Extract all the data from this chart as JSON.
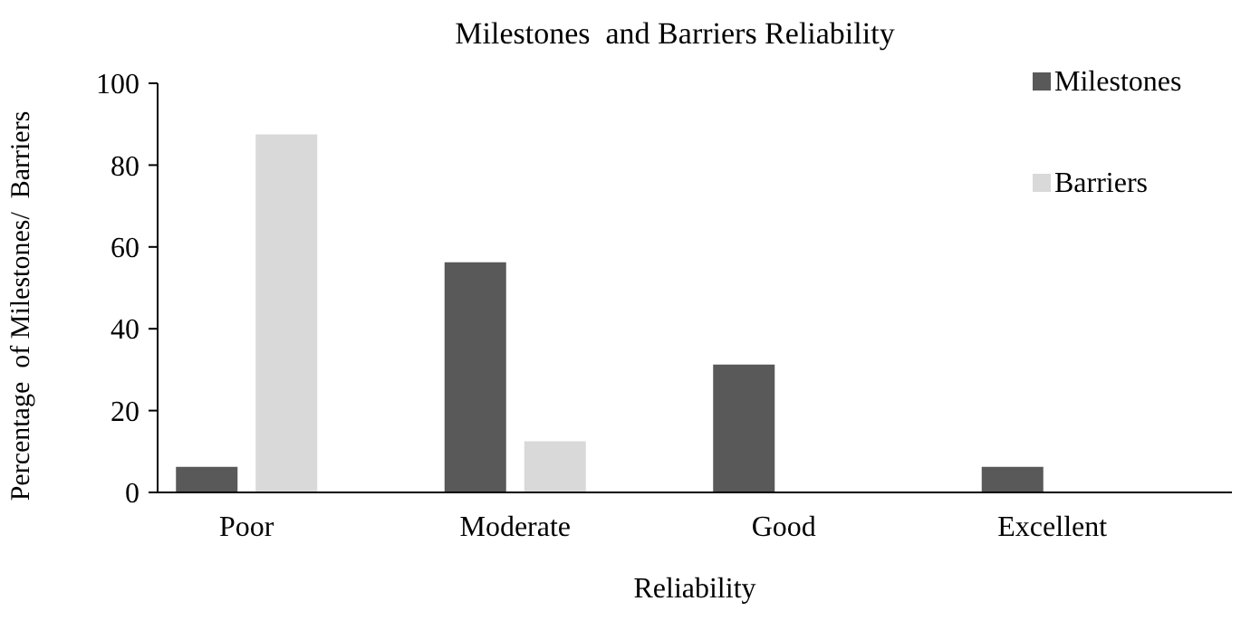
{
  "chart_data": {
    "type": "bar",
    "title": "Milestones  and Barriers Reliability",
    "xlabel": "Reliability",
    "ylabel": "Percentage  of Milestones/  Barriers",
    "categories": [
      "Poor",
      "Moderate",
      "Good",
      "Excellent"
    ],
    "series": [
      {
        "name": "Milestones",
        "color": "#595959",
        "values": [
          6.25,
          56.25,
          31.25,
          6.25
        ]
      },
      {
        "name": "Barriers",
        "color": "#d9d9d9",
        "values": [
          87.5,
          12.5,
          0,
          0
        ]
      }
    ],
    "ylim": [
      0,
      100
    ],
    "yticks": [
      0,
      20,
      40,
      60,
      80,
      100
    ],
    "grid": false,
    "legend": "top right"
  }
}
